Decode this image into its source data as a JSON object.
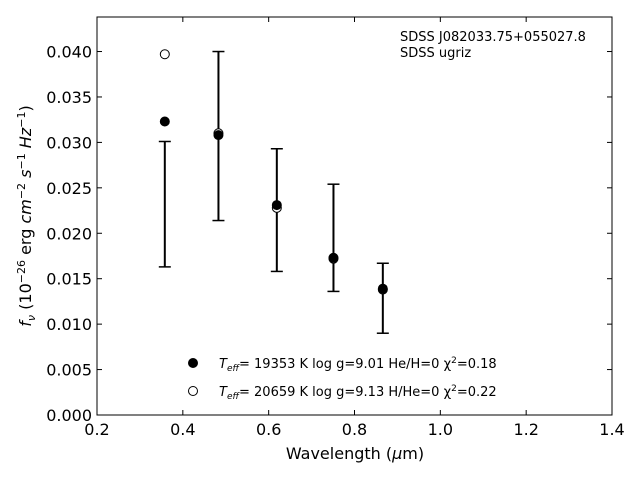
{
  "chart_data": {
    "type": "scatter",
    "title": "",
    "xlabel": "Wavelength (μm)",
    "ylabel": "f_ν (10^-26 erg cm^-2 s^-1 Hz^-1)",
    "xlim": [
      0.2,
      1.4
    ],
    "ylim": [
      0.0,
      0.0438
    ],
    "xticks": [
      0.2,
      0.4,
      0.6,
      0.8,
      1.0,
      1.2,
      1.4
    ],
    "xtick_labels": [
      "0.2",
      "0.4",
      "0.6",
      "0.8",
      "1.0",
      "1.2",
      "1.4"
    ],
    "yticks": [
      0.0,
      0.005,
      0.01,
      0.015,
      0.02,
      0.025,
      0.03,
      0.035,
      0.04
    ],
    "ytick_labels": [
      "0.000",
      "0.005",
      "0.010",
      "0.015",
      "0.020",
      "0.025",
      "0.030",
      "0.035",
      "0.040"
    ],
    "grid": false,
    "legend_position": "bottom-center",
    "annotations": [
      "SDSS J082033.75+055027.8",
      "SDSS ugriz"
    ],
    "observed": {
      "x": [
        0.358,
        0.483,
        0.619,
        0.751,
        0.866
      ],
      "y": [
        0.0232,
        0.0307,
        0.0226,
        0.0195,
        0.0129
      ],
      "yerr_low": [
        0.0069,
        0.0093,
        0.0068,
        0.0059,
        0.0039
      ],
      "yerr_high": [
        0.0069,
        0.0093,
        0.0067,
        0.0059,
        0.0038
      ]
    },
    "series": [
      {
        "name": "T_eff= 19353 K  log g=9.01  He/H=0  χ²=0.18",
        "marker": "filled-circle",
        "x": [
          0.358,
          0.483,
          0.619,
          0.751,
          0.866
        ],
        "y": [
          0.0323,
          0.0308,
          0.0231,
          0.0173,
          0.0139
        ]
      },
      {
        "name": "T_eff= 20659 K  log g=9.13  H/He=0  χ²=0.22",
        "marker": "open-circle",
        "x": [
          0.358,
          0.483,
          0.619,
          0.751,
          0.866
        ],
        "y": [
          0.0397,
          0.031,
          0.0228,
          0.0172,
          0.0138
        ]
      }
    ],
    "legend": [
      {
        "teff": "= 19353 K  log g=9.01  He/H=0  χ",
        "chi": "=0.18"
      },
      {
        "teff": "= 20659 K  log g=9.13  H/He=0  χ",
        "chi": "=0.22"
      }
    ]
  }
}
